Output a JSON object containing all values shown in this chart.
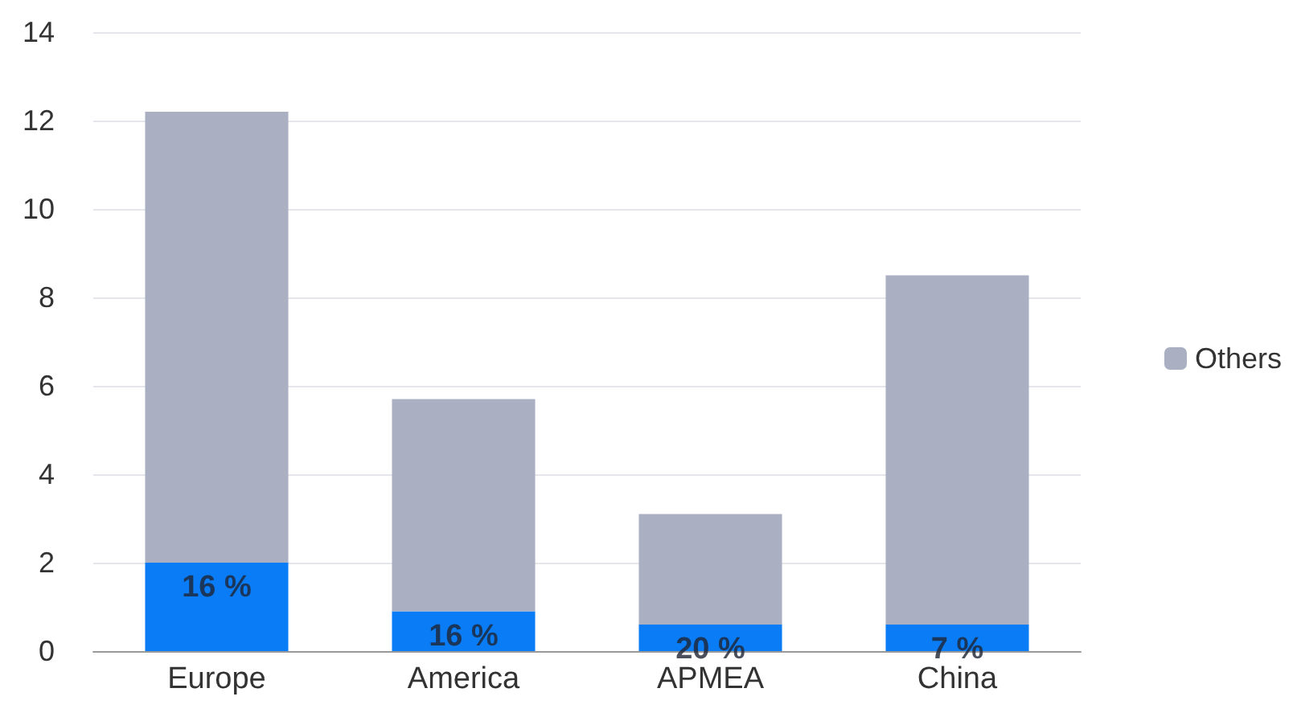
{
  "chart_data": {
    "type": "bar",
    "stacked": true,
    "categories": [
      "Europe",
      "America",
      "APMEA",
      "China"
    ],
    "series": [
      {
        "color": "#0a7cf5",
        "values": [
          2.0,
          0.9,
          0.6,
          0.6
        ]
      },
      {
        "name": "Others",
        "color": "#aab0c2",
        "values": [
          10.2,
          4.8,
          2.5,
          7.9
        ]
      }
    ],
    "annotations": [
      {
        "text": "16 %",
        "x": "Europe",
        "y": 2.0
      },
      {
        "text": "16 %",
        "x": "America",
        "y": 0.9
      },
      {
        "text": "20 %",
        "x": "APMEA",
        "y": 0.6
      },
      {
        "text": "7 %",
        "x": "China",
        "y": 0.6
      }
    ],
    "ylim": [
      0,
      14
    ],
    "yticks": [
      0,
      2,
      4,
      6,
      8,
      10,
      12,
      14
    ],
    "grid": "y",
    "legend": "right"
  }
}
